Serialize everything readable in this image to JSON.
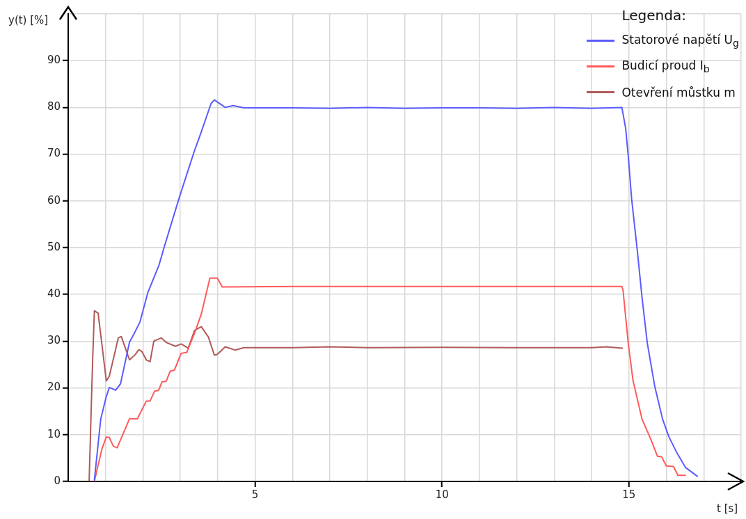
{
  "chart_data": {
    "type": "line",
    "xlabel": "t [s]",
    "ylabel": "y(t) [%]",
    "legend_title": "Legenda:",
    "legend": "top right",
    "grid": true,
    "marker": "none",
    "line_style": "solid",
    "xlim": [
      0,
      18
    ],
    "ylim": [
      0,
      100
    ],
    "xticks": [
      {
        "value": 1,
        "label": null
      },
      {
        "value": 2,
        "label": null
      },
      {
        "value": 3,
        "label": null
      },
      {
        "value": 4,
        "label": null
      },
      5,
      {
        "value": 6,
        "label": null
      },
      {
        "value": 7,
        "label": null
      },
      {
        "value": 8,
        "label": null
      },
      {
        "value": 9,
        "label": null
      },
      10,
      {
        "value": 11,
        "label": null
      },
      {
        "value": 12,
        "label": null
      },
      {
        "value": 13,
        "label": null
      },
      {
        "value": 14,
        "label": null
      },
      15,
      {
        "value": 16,
        "label": null
      },
      {
        "value": 17,
        "label": null
      },
      {
        "value": 18,
        "label": null
      }
    ],
    "yticks": [
      0,
      10,
      20,
      30,
      40,
      50,
      60,
      70,
      80,
      90,
      {
        "value": 100,
        "label": null
      }
    ],
    "series": [
      {
        "name": "Statorové napětí U$_{g}$",
        "color": "#5b5bff",
        "x": [
          0.7,
          0.87,
          1.01,
          1.1,
          1.27,
          1.4,
          1.64,
          1.75,
          1.92,
          2.13,
          2.43,
          2.57,
          2.97,
          3.38,
          3.54,
          3.82,
          3.91,
          4.2,
          4.41,
          4.7,
          6,
          7,
          8,
          9,
          10,
          11,
          12,
          13,
          14,
          14.81,
          14.91,
          14.98,
          15.07,
          15.22,
          15.35,
          15.49,
          15.69,
          15.9,
          16.07,
          16.27,
          16.51,
          16.83
        ],
        "values": [
          0.3,
          13.3,
          17.9,
          20.1,
          19.5,
          20.9,
          29.8,
          31.4,
          34.1,
          40.4,
          46.3,
          50.2,
          60.7,
          70.8,
          74.3,
          80.8,
          81.6,
          80,
          80.4,
          79.9,
          79.9,
          79.8,
          80,
          79.8,
          79.9,
          79.9,
          79.8,
          80,
          79.8,
          80,
          75.6,
          69.7,
          60.5,
          49.6,
          39.3,
          29.6,
          20.3,
          13.3,
          9.5,
          6.3,
          3.0,
          1.1
        ]
      },
      {
        "name": "Budicí proud I$_{b}$",
        "color": "#ff5a5a",
        "x": [
          0.7,
          0.9,
          1.02,
          1.1,
          1.21,
          1.31,
          1.64,
          1.85,
          2.09,
          2.19,
          2.31,
          2.42,
          2.51,
          2.62,
          2.73,
          2.84,
          3.02,
          3.17,
          3.38,
          3.56,
          3.79,
          3.99,
          4.12,
          6,
          8,
          10,
          12,
          14,
          14.81,
          14.84,
          14.98,
          15.11,
          15.35,
          15.59,
          15.76,
          15.87,
          16.0,
          16.19,
          16.31,
          16.51
        ],
        "values": [
          0,
          6.9,
          9.5,
          9.4,
          7.5,
          7.2,
          13.4,
          13.4,
          17.2,
          17.2,
          19.3,
          19.5,
          21.3,
          21.4,
          23.6,
          23.8,
          27.4,
          27.6,
          31.7,
          35.8,
          43.5,
          43.5,
          41.6,
          41.7,
          41.7,
          41.7,
          41.7,
          41.7,
          41.7,
          41.0,
          29.6,
          21.5,
          13.3,
          8.9,
          5.4,
          5.3,
          3.3,
          3.2,
          1.3,
          1.3
        ]
      },
      {
        "name": "Otevření můstku m",
        "color": "#b05a5a",
        "x": [
          0.56,
          0.65,
          0.7,
          0.8,
          1.02,
          1.1,
          1.34,
          1.42,
          1.64,
          1.79,
          1.89,
          1.97,
          2.09,
          2.19,
          2.29,
          2.49,
          2.63,
          2.87,
          3.02,
          3.21,
          3.38,
          3.56,
          3.75,
          3.91,
          3.99,
          4.2,
          4.46,
          4.7,
          6,
          7,
          8,
          10,
          12,
          14,
          14.4,
          14.82
        ],
        "values": [
          0,
          25,
          36.5,
          36,
          21.5,
          22.5,
          30.7,
          31,
          26,
          27.1,
          28.2,
          27.8,
          26,
          25.6,
          30,
          30.7,
          29.7,
          28.9,
          29.4,
          28.5,
          32.3,
          33.1,
          30.9,
          27,
          27.2,
          28.8,
          28.1,
          28.6,
          28.6,
          28.8,
          28.6,
          28.7,
          28.6,
          28.6,
          28.8,
          28.5
        ]
      }
    ]
  }
}
